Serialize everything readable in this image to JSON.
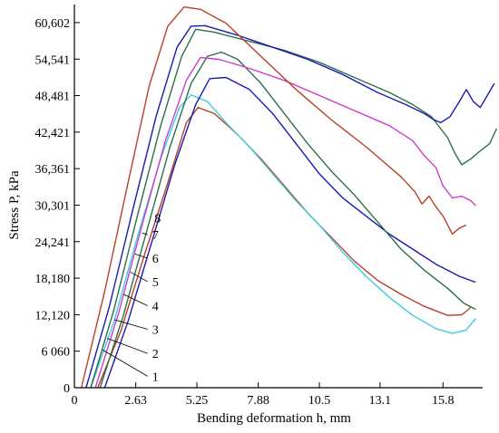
{
  "chart_data": {
    "type": "line",
    "title": "",
    "xlabel": "Bending deformation h, mm",
    "ylabel": "Stress P, kPa",
    "xlim": [
      0,
      17.5
    ],
    "ylim": [
      0,
      63600
    ],
    "grid": false,
    "legend": "none",
    "x_ticks": [
      {
        "value": 0,
        "label": "0"
      },
      {
        "value": 2.63,
        "label": "2.63"
      },
      {
        "value": 5.25,
        "label": "5.25"
      },
      {
        "value": 7.88,
        "label": "7.88"
      },
      {
        "value": 10.5,
        "label": "10.5"
      },
      {
        "value": 13.1,
        "label": "13.1"
      },
      {
        "value": 15.8,
        "label": "15.8"
      }
    ],
    "y_ticks": [
      {
        "value": 0,
        "label": "0"
      },
      {
        "value": 6060,
        "label": "6 060"
      },
      {
        "value": 12120,
        "label": "12,120"
      },
      {
        "value": 18180,
        "label": "18,180"
      },
      {
        "value": 24241,
        "label": "24,241"
      },
      {
        "value": 30301,
        "label": "30,301"
      },
      {
        "value": 36361,
        "label": "36,361"
      },
      {
        "value": 42421,
        "label": "42,421"
      },
      {
        "value": 48481,
        "label": "48,481"
      },
      {
        "value": 54541,
        "label": "54,541"
      },
      {
        "value": 60602,
        "label": "60,602"
      }
    ],
    "series": [
      {
        "label": "1",
        "color": "#b8412a",
        "leader_from": [
          3.1,
          1900
        ],
        "leader_to": [
          1.2,
          6300
        ],
        "points": [
          [
            1.0,
            0
          ],
          [
            2.0,
            9500
          ],
          [
            3.0,
            22000
          ],
          [
            4.0,
            34000
          ],
          [
            4.8,
            44000
          ],
          [
            5.3,
            46500
          ],
          [
            6.0,
            45500
          ],
          [
            7.0,
            42000
          ],
          [
            8.0,
            38000
          ],
          [
            9.0,
            33500
          ],
          [
            10.0,
            29000
          ],
          [
            11.0,
            25000
          ],
          [
            12.0,
            21000
          ],
          [
            13.0,
            17800
          ],
          [
            14.0,
            15500
          ],
          [
            15.0,
            13500
          ],
          [
            16.0,
            12000
          ],
          [
            16.6,
            12100
          ],
          [
            16.9,
            13000
          ],
          [
            17.0,
            13500
          ]
        ]
      },
      {
        "label": "2",
        "color": "#3ccde0",
        "leader_from": [
          3.1,
          5700
        ],
        "leader_to": [
          1.4,
          8200
        ],
        "points": [
          [
            0.7,
            0
          ],
          [
            1.7,
            11000
          ],
          [
            2.7,
            25000
          ],
          [
            3.7,
            38000
          ],
          [
            4.5,
            46500
          ],
          [
            5.0,
            48600
          ],
          [
            5.7,
            47500
          ],
          [
            6.5,
            44000
          ],
          [
            7.5,
            40000
          ],
          [
            8.5,
            35500
          ],
          [
            9.5,
            31000
          ],
          [
            10.5,
            27000
          ],
          [
            11.5,
            22500
          ],
          [
            12.5,
            18500
          ],
          [
            13.5,
            15000
          ],
          [
            14.5,
            12000
          ],
          [
            15.5,
            9800
          ],
          [
            16.2,
            9000
          ],
          [
            16.8,
            9600
          ],
          [
            17.2,
            11500
          ]
        ]
      },
      {
        "label": "3",
        "color": "#1a1ab0",
        "leader_from": [
          3.1,
          9700
        ],
        "leader_to": [
          1.7,
          11300
        ],
        "points": [
          [
            1.3,
            0
          ],
          [
            2.3,
            11000
          ],
          [
            3.3,
            24000
          ],
          [
            4.3,
            37000
          ],
          [
            5.2,
            47000
          ],
          [
            5.8,
            51300
          ],
          [
            6.5,
            51500
          ],
          [
            7.5,
            49500
          ],
          [
            8.5,
            45500
          ],
          [
            9.5,
            40500
          ],
          [
            10.5,
            35500
          ],
          [
            11.5,
            31500
          ],
          [
            12.5,
            28500
          ],
          [
            13.5,
            25500
          ],
          [
            14.5,
            23000
          ],
          [
            15.5,
            20500
          ],
          [
            16.5,
            18500
          ],
          [
            17.2,
            17500
          ]
        ]
      },
      {
        "label": "4",
        "color": "#2f6e4a",
        "leader_from": [
          3.1,
          13600
        ],
        "leader_to": [
          2.1,
          15500
        ],
        "points": [
          [
            1.1,
            0
          ],
          [
            2.1,
            12000
          ],
          [
            3.1,
            26000
          ],
          [
            4.1,
            40000
          ],
          [
            5.0,
            50500
          ],
          [
            5.7,
            55000
          ],
          [
            6.3,
            55700
          ],
          [
            7.0,
            54500
          ],
          [
            8.0,
            50500
          ],
          [
            9.0,
            45500
          ],
          [
            10.0,
            40500
          ],
          [
            11.0,
            36000
          ],
          [
            12.0,
            32000
          ],
          [
            13.0,
            27500
          ],
          [
            14.0,
            23000
          ],
          [
            15.0,
            19500
          ],
          [
            16.0,
            16500
          ],
          [
            16.7,
            14000
          ],
          [
            17.2,
            13000
          ]
        ]
      },
      {
        "label": "5",
        "color": "#cc3ccc",
        "leader_from": [
          3.1,
          17600
        ],
        "leader_to": [
          2.4,
          19200
        ],
        "points": [
          [
            0.9,
            0
          ],
          [
            1.9,
            12500
          ],
          [
            2.9,
            27000
          ],
          [
            3.9,
            41000
          ],
          [
            4.8,
            51000
          ],
          [
            5.4,
            54800
          ],
          [
            6.2,
            54500
          ],
          [
            7.5,
            53000
          ],
          [
            9.0,
            51000
          ],
          [
            10.5,
            48500
          ],
          [
            12.0,
            46000
          ],
          [
            13.5,
            43500
          ],
          [
            14.5,
            41000
          ],
          [
            15.0,
            38500
          ],
          [
            15.5,
            36500
          ],
          [
            15.8,
            33500
          ],
          [
            16.2,
            31500
          ],
          [
            16.6,
            31800
          ],
          [
            17.0,
            31000
          ],
          [
            17.2,
            30200
          ]
        ]
      },
      {
        "label": "6",
        "color": "#2f6e4a",
        "leader_from": [
          3.1,
          21500
        ],
        "leader_to": [
          2.6,
          22200
        ],
        "points": [
          [
            0.7,
            0
          ],
          [
            1.7,
            13000
          ],
          [
            2.7,
            28500
          ],
          [
            3.7,
            43500
          ],
          [
            4.6,
            55000
          ],
          [
            5.2,
            59500
          ],
          [
            6.0,
            59000
          ],
          [
            7.5,
            57500
          ],
          [
            9.0,
            56000
          ],
          [
            10.5,
            54000
          ],
          [
            12.0,
            51500
          ],
          [
            13.5,
            49000
          ],
          [
            14.5,
            47000
          ],
          [
            15.3,
            45000
          ],
          [
            15.7,
            43000
          ],
          [
            16.0,
            41500
          ],
          [
            16.3,
            39000
          ],
          [
            16.6,
            37000
          ],
          [
            17.0,
            38000
          ],
          [
            17.3,
            39000
          ],
          [
            17.8,
            40500
          ],
          [
            18.1,
            43000
          ]
        ]
      },
      {
        "label": "7",
        "color": "#1a1ab0",
        "leader_from": [
          3.1,
          25400
        ],
        "leader_to": [
          2.9,
          25700
        ],
        "points": [
          [
            0.5,
            0
          ],
          [
            1.5,
            13500
          ],
          [
            2.5,
            29500
          ],
          [
            3.5,
            45000
          ],
          [
            4.4,
            56500
          ],
          [
            5.0,
            60000
          ],
          [
            5.6,
            60100
          ],
          [
            7.0,
            58500
          ],
          [
            8.5,
            56500
          ],
          [
            10.0,
            54500
          ],
          [
            11.5,
            52000
          ],
          [
            13.0,
            49000
          ],
          [
            14.2,
            47000
          ],
          [
            15.0,
            45500
          ],
          [
            15.4,
            44500
          ],
          [
            15.7,
            44000
          ],
          [
            16.1,
            45000
          ],
          [
            16.5,
            47500
          ],
          [
            16.8,
            49500
          ],
          [
            17.1,
            47500
          ],
          [
            17.4,
            46500
          ],
          [
            17.7,
            48500
          ],
          [
            18.0,
            50500
          ]
        ]
      },
      {
        "label": "8",
        "color": "#b8412a",
        "leader_from": [
          3.2,
          28200
        ],
        "leader_to": [
          3.2,
          28200
        ],
        "points": [
          [
            0.3,
            0
          ],
          [
            1.3,
            16000
          ],
          [
            2.3,
            34000
          ],
          [
            3.2,
            50000
          ],
          [
            4.0,
            60000
          ],
          [
            4.7,
            63200
          ],
          [
            5.4,
            62800
          ],
          [
            6.5,
            60500
          ],
          [
            8.0,
            55000
          ],
          [
            9.5,
            49500
          ],
          [
            11.0,
            44500
          ],
          [
            12.5,
            40000
          ],
          [
            14.0,
            35000
          ],
          [
            14.6,
            32500
          ],
          [
            14.9,
            30500
          ],
          [
            15.2,
            31800
          ],
          [
            15.5,
            30000
          ],
          [
            15.8,
            28500
          ],
          [
            16.2,
            25500
          ],
          [
            16.5,
            26500
          ],
          [
            16.8,
            27000
          ]
        ]
      }
    ]
  }
}
